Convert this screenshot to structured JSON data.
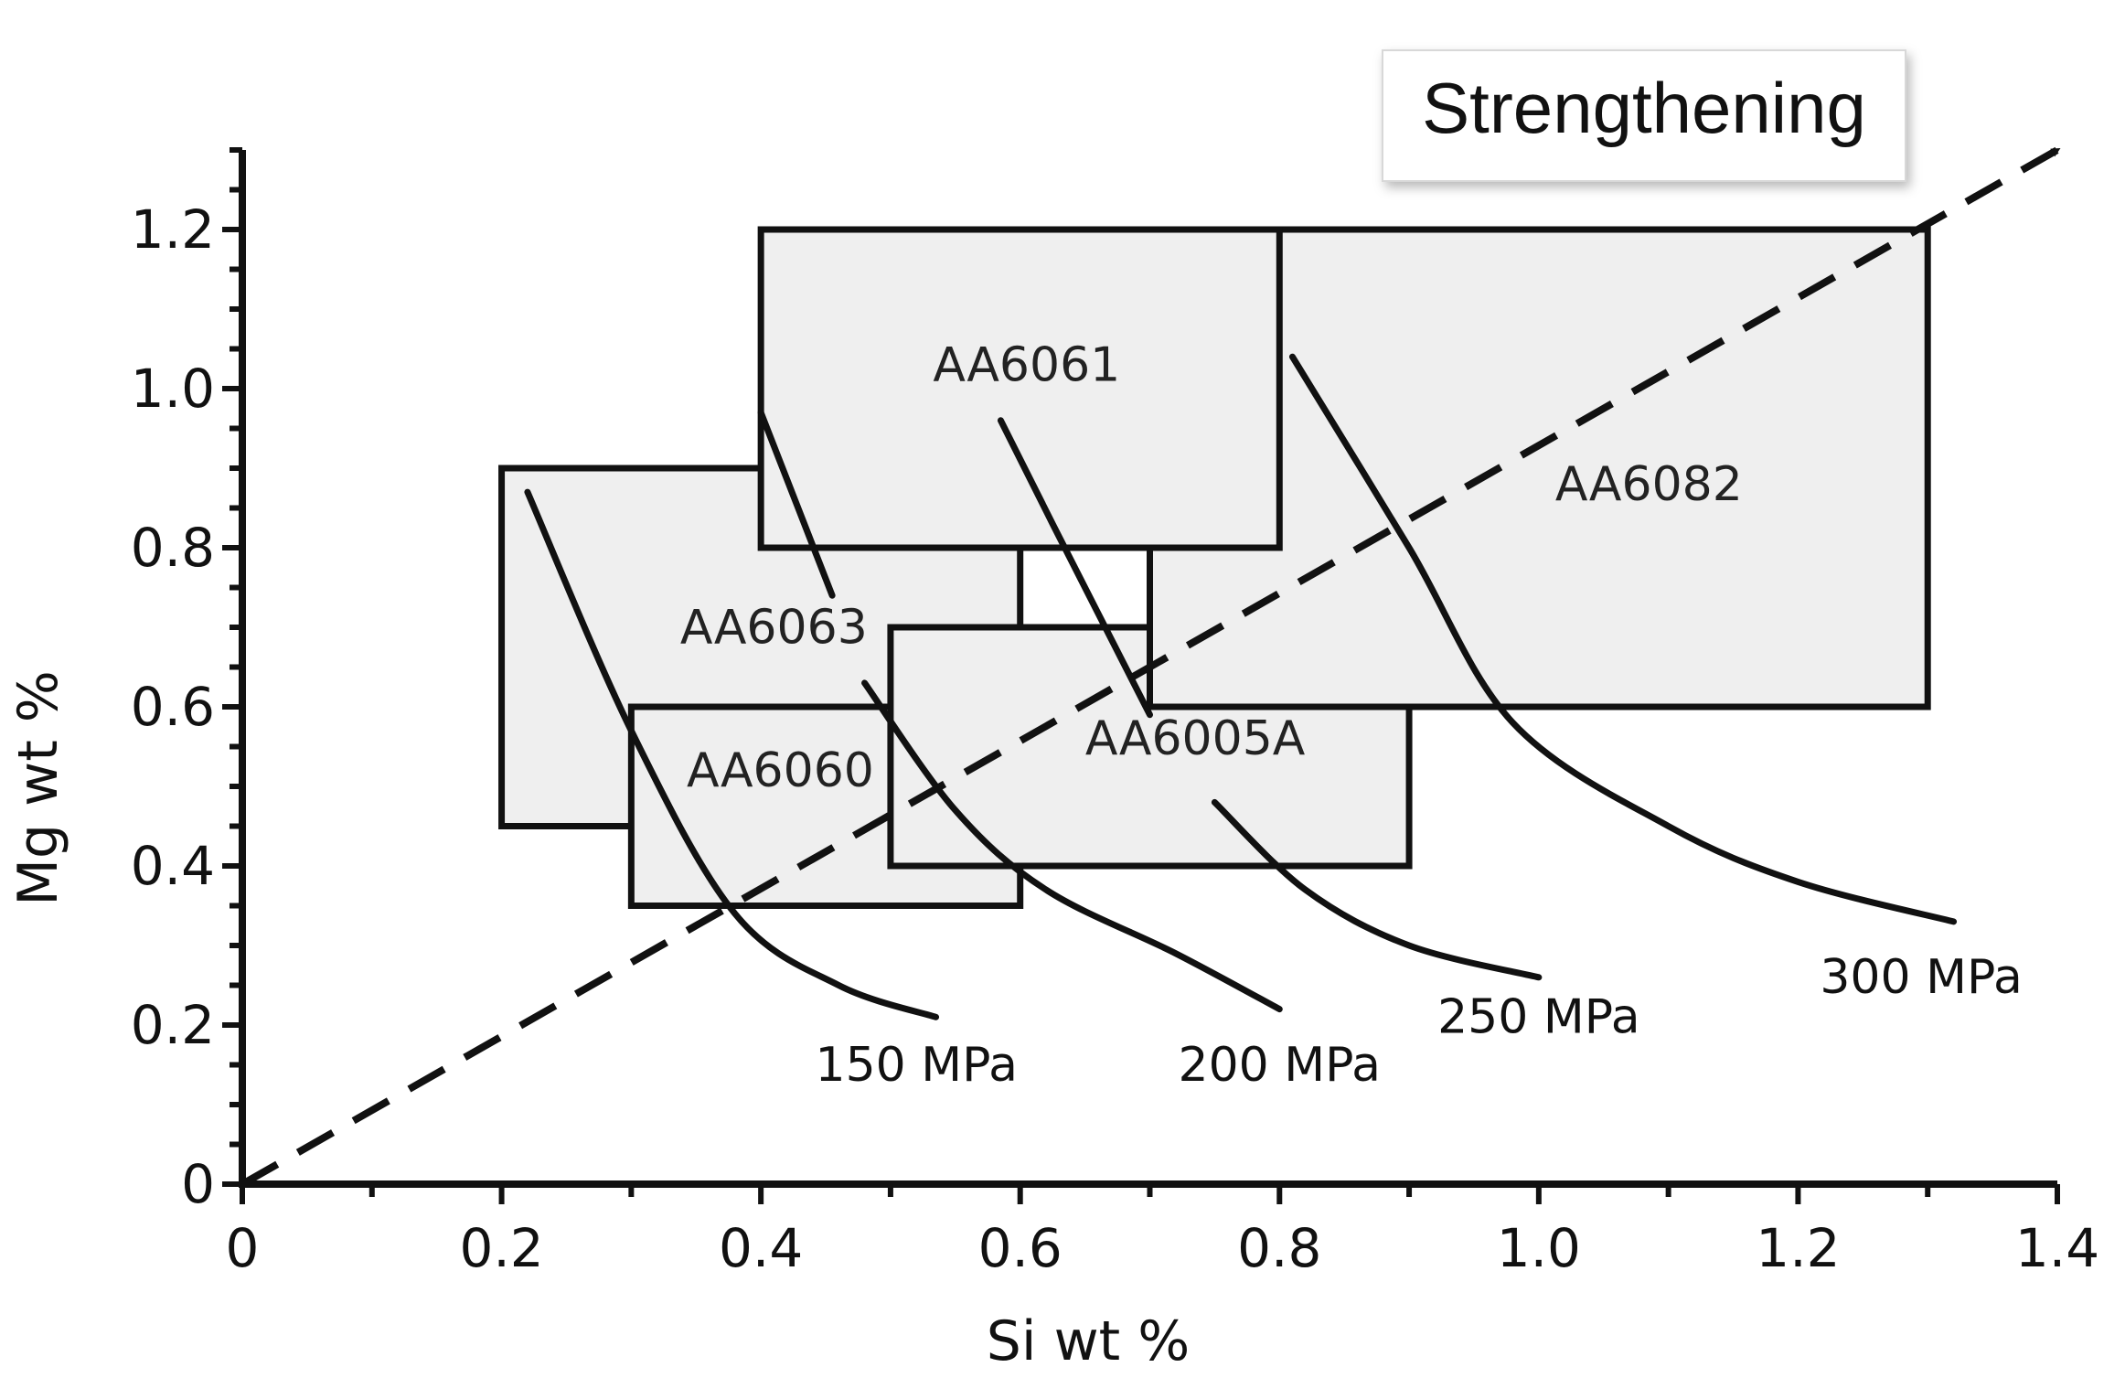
{
  "chart_data": {
    "type": "scatter",
    "title": "",
    "xlabel": "Si wt %",
    "ylabel": "Mg wt %",
    "xlim": [
      0,
      1.4
    ],
    "ylim": [
      0,
      1.3
    ],
    "x_tick_labels": [
      "0",
      "0.2",
      "0.4",
      "0.6",
      "0.8",
      "1.0",
      "1.2",
      "1.4"
    ],
    "y_tick_labels": [
      "0",
      "0.2",
      "0.4",
      "0.6",
      "0.8",
      "1.0",
      "1.2"
    ],
    "x_major_values": [
      0,
      0.2,
      0.4,
      0.6,
      0.8,
      1.0,
      1.2,
      1.4
    ],
    "y_major_values": [
      0,
      0.2,
      0.4,
      0.6,
      0.8,
      1.0,
      1.2
    ],
    "alloys": [
      {
        "name": "AA6063",
        "si": [
          0.2,
          0.6
        ],
        "mg": [
          0.45,
          0.9
        ],
        "label_at": [
          0.41,
          0.68
        ]
      },
      {
        "name": "AA6060",
        "si": [
          0.3,
          0.6
        ],
        "mg": [
          0.35,
          0.6
        ],
        "label_at": [
          0.415,
          0.5
        ]
      },
      {
        "name": "AA6005A",
        "si": [
          0.5,
          0.9
        ],
        "mg": [
          0.4,
          0.7
        ],
        "label_at": [
          0.735,
          0.54
        ]
      },
      {
        "name": "AA6082",
        "si": [
          0.7,
          1.3
        ],
        "mg": [
          0.6,
          1.2
        ],
        "label_at": [
          1.085,
          0.86
        ]
      },
      {
        "name": "AA6061",
        "si": [
          0.4,
          0.8
        ],
        "mg": [
          0.8,
          1.2
        ],
        "label_at": [
          0.605,
          1.01
        ]
      }
    ],
    "strength_curves": [
      {
        "label": "150 MPa",
        "points": [
          [
            0.22,
            0.87
          ],
          [
            0.3,
            0.57
          ],
          [
            0.38,
            0.34
          ],
          [
            0.46,
            0.25
          ],
          [
            0.535,
            0.21
          ]
        ],
        "label_at": [
          0.52,
          0.13
        ]
      },
      {
        "label": "200 MPa",
        "points": [
          [
            0.48,
            0.63
          ],
          [
            0.55,
            0.47
          ],
          [
            0.62,
            0.37
          ],
          [
            0.72,
            0.29
          ],
          [
            0.8,
            0.22
          ]
        ],
        "label_at": [
          0.8,
          0.13
        ]
      },
      {
        "label": "250 MPa",
        "points": [
          [
            0.75,
            0.48
          ],
          [
            0.82,
            0.37
          ],
          [
            0.9,
            0.3
          ],
          [
            1.0,
            0.26
          ]
        ],
        "label_at": [
          1.0,
          0.19
        ]
      },
      {
        "label": "300 MPa",
        "points": [
          [
            0.81,
            1.04
          ],
          [
            0.9,
            0.8
          ],
          [
            0.98,
            0.58
          ],
          [
            1.1,
            0.45
          ],
          [
            1.2,
            0.38
          ],
          [
            1.32,
            0.33
          ]
        ],
        "label_at": [
          1.295,
          0.24
        ]
      }
    ],
    "line_segments": [
      {
        "points": [
          [
            0.4,
            0.97
          ],
          [
            0.455,
            0.74
          ]
        ]
      },
      {
        "points": [
          [
            0.585,
            0.96
          ],
          [
            0.625,
            0.83
          ],
          [
            0.7,
            0.59
          ]
        ]
      }
    ],
    "trend_arrow": {
      "from": [
        0,
        0
      ],
      "to": [
        1.4,
        1.3
      ]
    },
    "annotations": [
      {
        "text": "Strengthening"
      }
    ]
  }
}
